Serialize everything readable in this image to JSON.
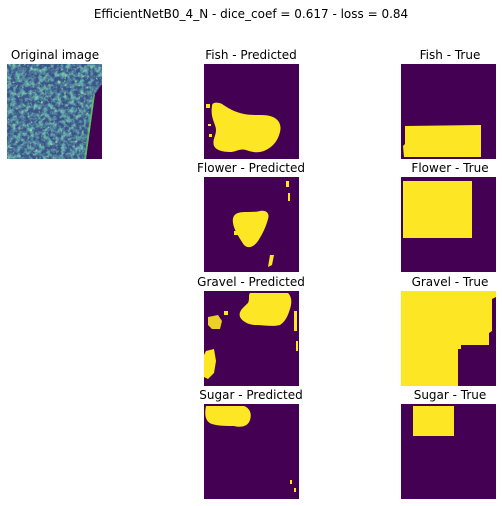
{
  "figure": {
    "title": "EfficientNetB0_4_N - dice_coef = 0.617 - loss = 0.84"
  },
  "colors": {
    "mask_background": "#440154",
    "mask_foreground": "#fde725",
    "image_low": "#3b528b",
    "image_mid": "#21918c",
    "image_high": "#5ec962"
  },
  "panels": {
    "original": {
      "title": "Original image"
    },
    "fish_predicted": {
      "title": "Fish - Predicted"
    },
    "fish_true": {
      "title": "Fish - True"
    },
    "flower_predicted": {
      "title": "Flower - Predicted"
    },
    "flower_true": {
      "title": "Flower - True"
    },
    "gravel_predicted": {
      "title": "Gravel - Predicted"
    },
    "gravel_true": {
      "title": "Gravel - True"
    },
    "sugar_predicted": {
      "title": "Sugar - Predicted"
    },
    "sugar_true": {
      "title": "Sugar - True"
    }
  }
}
